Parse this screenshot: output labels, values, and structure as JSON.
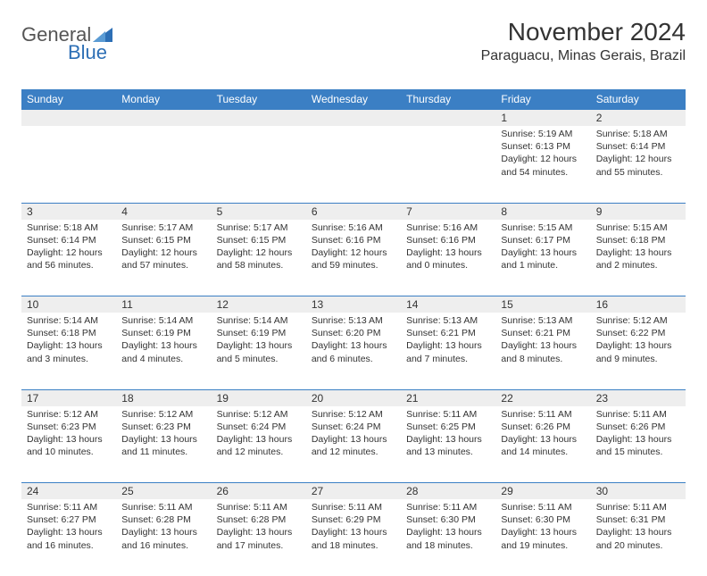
{
  "logo": {
    "general": "General",
    "blue": "Blue"
  },
  "title": "November 2024",
  "location": "Paraguacu, Minas Gerais, Brazil",
  "colors": {
    "header_bg": "#3b7fc4",
    "header_text": "#ffffff",
    "daynum_bg": "#eeeeee",
    "border": "#3b7fc4",
    "text": "#333333",
    "logo_gray": "#555555",
    "logo_blue": "#2d6fb5",
    "background": "#ffffff"
  },
  "typography": {
    "title_fontsize": 28,
    "location_fontsize": 16,
    "dayheader_fontsize": 12,
    "daynum_fontsize": 12,
    "cell_fontsize": 10.5
  },
  "day_headers": [
    "Sunday",
    "Monday",
    "Tuesday",
    "Wednesday",
    "Thursday",
    "Friday",
    "Saturday"
  ],
  "weeks": [
    [
      {
        "num": "",
        "sunrise": "",
        "sunset": "",
        "daylight": ""
      },
      {
        "num": "",
        "sunrise": "",
        "sunset": "",
        "daylight": ""
      },
      {
        "num": "",
        "sunrise": "",
        "sunset": "",
        "daylight": ""
      },
      {
        "num": "",
        "sunrise": "",
        "sunset": "",
        "daylight": ""
      },
      {
        "num": "",
        "sunrise": "",
        "sunset": "",
        "daylight": ""
      },
      {
        "num": "1",
        "sunrise": "Sunrise: 5:19 AM",
        "sunset": "Sunset: 6:13 PM",
        "daylight": "Daylight: 12 hours and 54 minutes."
      },
      {
        "num": "2",
        "sunrise": "Sunrise: 5:18 AM",
        "sunset": "Sunset: 6:14 PM",
        "daylight": "Daylight: 12 hours and 55 minutes."
      }
    ],
    [
      {
        "num": "3",
        "sunrise": "Sunrise: 5:18 AM",
        "sunset": "Sunset: 6:14 PM",
        "daylight": "Daylight: 12 hours and 56 minutes."
      },
      {
        "num": "4",
        "sunrise": "Sunrise: 5:17 AM",
        "sunset": "Sunset: 6:15 PM",
        "daylight": "Daylight: 12 hours and 57 minutes."
      },
      {
        "num": "5",
        "sunrise": "Sunrise: 5:17 AM",
        "sunset": "Sunset: 6:15 PM",
        "daylight": "Daylight: 12 hours and 58 minutes."
      },
      {
        "num": "6",
        "sunrise": "Sunrise: 5:16 AM",
        "sunset": "Sunset: 6:16 PM",
        "daylight": "Daylight: 12 hours and 59 minutes."
      },
      {
        "num": "7",
        "sunrise": "Sunrise: 5:16 AM",
        "sunset": "Sunset: 6:16 PM",
        "daylight": "Daylight: 13 hours and 0 minutes."
      },
      {
        "num": "8",
        "sunrise": "Sunrise: 5:15 AM",
        "sunset": "Sunset: 6:17 PM",
        "daylight": "Daylight: 13 hours and 1 minute."
      },
      {
        "num": "9",
        "sunrise": "Sunrise: 5:15 AM",
        "sunset": "Sunset: 6:18 PM",
        "daylight": "Daylight: 13 hours and 2 minutes."
      }
    ],
    [
      {
        "num": "10",
        "sunrise": "Sunrise: 5:14 AM",
        "sunset": "Sunset: 6:18 PM",
        "daylight": "Daylight: 13 hours and 3 minutes."
      },
      {
        "num": "11",
        "sunrise": "Sunrise: 5:14 AM",
        "sunset": "Sunset: 6:19 PM",
        "daylight": "Daylight: 13 hours and 4 minutes."
      },
      {
        "num": "12",
        "sunrise": "Sunrise: 5:14 AM",
        "sunset": "Sunset: 6:19 PM",
        "daylight": "Daylight: 13 hours and 5 minutes."
      },
      {
        "num": "13",
        "sunrise": "Sunrise: 5:13 AM",
        "sunset": "Sunset: 6:20 PM",
        "daylight": "Daylight: 13 hours and 6 minutes."
      },
      {
        "num": "14",
        "sunrise": "Sunrise: 5:13 AM",
        "sunset": "Sunset: 6:21 PM",
        "daylight": "Daylight: 13 hours and 7 minutes."
      },
      {
        "num": "15",
        "sunrise": "Sunrise: 5:13 AM",
        "sunset": "Sunset: 6:21 PM",
        "daylight": "Daylight: 13 hours and 8 minutes."
      },
      {
        "num": "16",
        "sunrise": "Sunrise: 5:12 AM",
        "sunset": "Sunset: 6:22 PM",
        "daylight": "Daylight: 13 hours and 9 minutes."
      }
    ],
    [
      {
        "num": "17",
        "sunrise": "Sunrise: 5:12 AM",
        "sunset": "Sunset: 6:23 PM",
        "daylight": "Daylight: 13 hours and 10 minutes."
      },
      {
        "num": "18",
        "sunrise": "Sunrise: 5:12 AM",
        "sunset": "Sunset: 6:23 PM",
        "daylight": "Daylight: 13 hours and 11 minutes."
      },
      {
        "num": "19",
        "sunrise": "Sunrise: 5:12 AM",
        "sunset": "Sunset: 6:24 PM",
        "daylight": "Daylight: 13 hours and 12 minutes."
      },
      {
        "num": "20",
        "sunrise": "Sunrise: 5:12 AM",
        "sunset": "Sunset: 6:24 PM",
        "daylight": "Daylight: 13 hours and 12 minutes."
      },
      {
        "num": "21",
        "sunrise": "Sunrise: 5:11 AM",
        "sunset": "Sunset: 6:25 PM",
        "daylight": "Daylight: 13 hours and 13 minutes."
      },
      {
        "num": "22",
        "sunrise": "Sunrise: 5:11 AM",
        "sunset": "Sunset: 6:26 PM",
        "daylight": "Daylight: 13 hours and 14 minutes."
      },
      {
        "num": "23",
        "sunrise": "Sunrise: 5:11 AM",
        "sunset": "Sunset: 6:26 PM",
        "daylight": "Daylight: 13 hours and 15 minutes."
      }
    ],
    [
      {
        "num": "24",
        "sunrise": "Sunrise: 5:11 AM",
        "sunset": "Sunset: 6:27 PM",
        "daylight": "Daylight: 13 hours and 16 minutes."
      },
      {
        "num": "25",
        "sunrise": "Sunrise: 5:11 AM",
        "sunset": "Sunset: 6:28 PM",
        "daylight": "Daylight: 13 hours and 16 minutes."
      },
      {
        "num": "26",
        "sunrise": "Sunrise: 5:11 AM",
        "sunset": "Sunset: 6:28 PM",
        "daylight": "Daylight: 13 hours and 17 minutes."
      },
      {
        "num": "27",
        "sunrise": "Sunrise: 5:11 AM",
        "sunset": "Sunset: 6:29 PM",
        "daylight": "Daylight: 13 hours and 18 minutes."
      },
      {
        "num": "28",
        "sunrise": "Sunrise: 5:11 AM",
        "sunset": "Sunset: 6:30 PM",
        "daylight": "Daylight: 13 hours and 18 minutes."
      },
      {
        "num": "29",
        "sunrise": "Sunrise: 5:11 AM",
        "sunset": "Sunset: 6:30 PM",
        "daylight": "Daylight: 13 hours and 19 minutes."
      },
      {
        "num": "30",
        "sunrise": "Sunrise: 5:11 AM",
        "sunset": "Sunset: 6:31 PM",
        "daylight": "Daylight: 13 hours and 20 minutes."
      }
    ]
  ]
}
